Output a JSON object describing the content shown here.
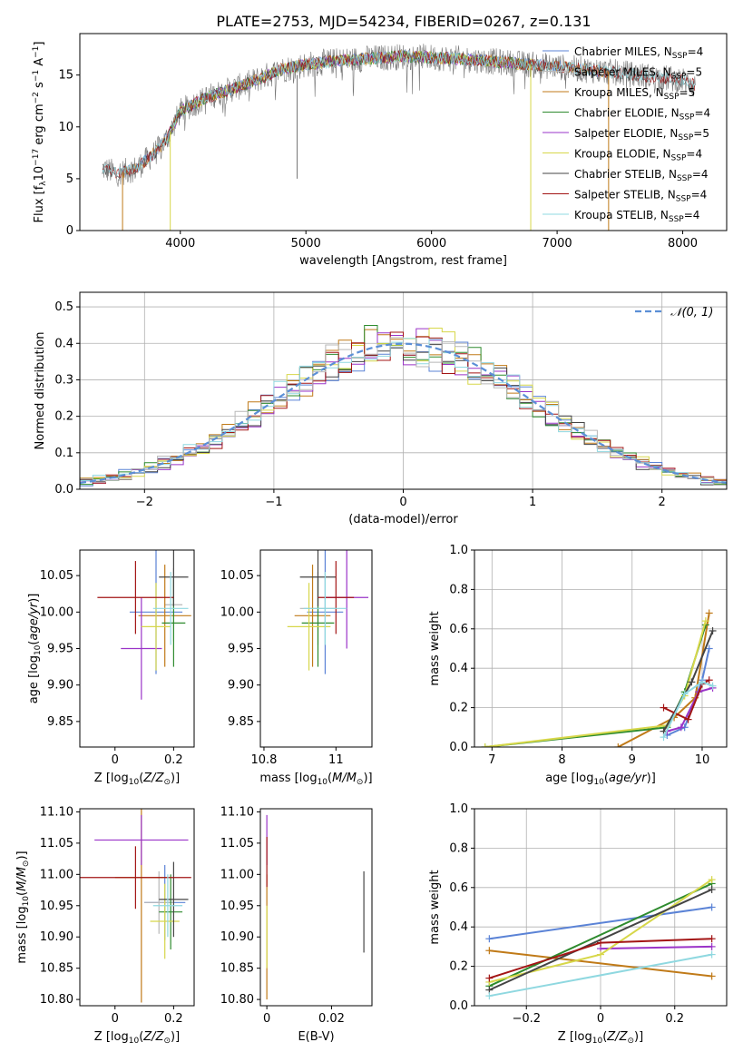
{
  "title": "PLATE=2753, MJD=54234, FIBERID=0267, z=0.131",
  "colors": {
    "chabrier_miles": "#5b83d6",
    "salpeter_miles": "#b8b8b8",
    "kroupa_miles": "#c07a18",
    "chabrier_elodie": "#2e8b2e",
    "salpeter_elodie": "#9a34c8",
    "kroupa_elodie": "#d7d74a",
    "chabrier_stelib": "#444444",
    "salpeter_stelib": "#a31515",
    "kroupa_stelib": "#8fd8e0",
    "normal_curve": "#5b8fd6"
  },
  "legend_models": [
    {
      "key": "chabrier_miles",
      "label": "Chabrier MILES, N",
      "n": "=4"
    },
    {
      "key": "salpeter_miles",
      "label": "Salpeter MILES, N",
      "n": "=5"
    },
    {
      "key": "kroupa_miles",
      "label": "Kroupa MILES, N",
      "n": "=5"
    },
    {
      "key": "chabrier_elodie",
      "label": "Chabrier ELODIE, N",
      "n": "=4"
    },
    {
      "key": "salpeter_elodie",
      "label": "Salpeter ELODIE, N",
      "n": "=5"
    },
    {
      "key": "kroupa_elodie",
      "label": "Kroupa ELODIE, N",
      "n": "=4"
    },
    {
      "key": "chabrier_stelib",
      "label": "Chabrier STELIB, N",
      "n": "=4"
    },
    {
      "key": "salpeter_stelib",
      "label": "Salpeter STELIB, N",
      "n": "=4"
    },
    {
      "key": "kroupa_stelib",
      "label": "Kroupa STELIB, N",
      "n": "=4"
    }
  ],
  "legend_sub": "SSP",
  "normal_label": "𝒩(0, 1)",
  "chart_data": [
    {
      "type": "line",
      "name": "spectrum",
      "xlabel": "wavelength [Angstrom, rest frame]",
      "ylabel": "Flux [f_λ 10^-17 erg cm^-2 s^-1 A^-1]",
      "xlim": [
        3200,
        8350
      ],
      "ylim": [
        0,
        19
      ],
      "xticks": [
        4000,
        5000,
        6000,
        7000,
        8000
      ],
      "yticks": [
        0,
        5,
        10,
        15
      ],
      "continuum": [
        [
          3380,
          6.0
        ],
        [
          3500,
          5.5
        ],
        [
          3650,
          6.0
        ],
        [
          3800,
          7.5
        ],
        [
          3900,
          9.0
        ],
        [
          4000,
          11.5
        ],
        [
          4200,
          12.8
        ],
        [
          4500,
          14.0
        ],
        [
          4800,
          15.5
        ],
        [
          5000,
          16.0
        ],
        [
          5200,
          16.3
        ],
        [
          5500,
          16.6
        ],
        [
          5800,
          16.8
        ],
        [
          6000,
          16.7
        ],
        [
          6300,
          16.5
        ],
        [
          6600,
          16.2
        ],
        [
          7000,
          15.8
        ],
        [
          7500,
          15.2
        ],
        [
          8000,
          14.5
        ],
        [
          8100,
          14.0
        ]
      ]
    },
    {
      "type": "line",
      "name": "residuals",
      "xlabel": "(data-model)/error",
      "ylabel": "Normed distribution",
      "xlim": [
        -2.5,
        2.5
      ],
      "ylim": [
        0,
        0.54
      ],
      "xticks": [
        -2,
        -1,
        0,
        1,
        2
      ],
      "yticks": [
        0.0,
        0.1,
        0.2,
        0.3,
        0.4,
        0.5
      ],
      "bin_width": 0.1,
      "grid": true,
      "legend": "top-right"
    },
    {
      "type": "scatter",
      "name": "age_vs_Z",
      "xlabel": "Z [log10(Z/Z⊙)]",
      "ylabel": "age  [log10(age/yr)]",
      "xlim": [
        -0.12,
        0.27
      ],
      "ylim": [
        9.815,
        10.085
      ],
      "xticks": [
        0.0,
        0.2
      ],
      "yticks": [
        9.85,
        9.9,
        9.95,
        10.0,
        10.05
      ],
      "points": [
        {
          "key": "chabrier_miles",
          "x": 0.14,
          "xerr": 0.09,
          "y": 10.0,
          "yerr": 0.085
        },
        {
          "key": "salpeter_miles",
          "x": 0.2,
          "xerr": 0.03,
          "y": 10.01,
          "yerr": 0.05
        },
        {
          "key": "kroupa_miles",
          "x": 0.17,
          "xerr": 0.09,
          "y": 9.995,
          "yerr": 0.07
        },
        {
          "key": "chabrier_elodie",
          "x": 0.2,
          "xerr": 0.04,
          "y": 9.985,
          "yerr": 0.06
        },
        {
          "key": "salpeter_elodie",
          "x": 0.09,
          "xerr": 0.07,
          "y": 9.95,
          "yerr": 0.07
        },
        {
          "key": "kroupa_elodie",
          "x": 0.14,
          "xerr": 0.05,
          "y": 9.98,
          "yerr": 0.06
        },
        {
          "key": "chabrier_stelib",
          "x": 0.2,
          "xerr": 0.05,
          "y": 10.048,
          "yerr": 0.04
        },
        {
          "key": "salpeter_stelib",
          "x": 0.07,
          "xerr": 0.13,
          "y": 10.02,
          "yerr": 0.05
        },
        {
          "key": "kroupa_stelib",
          "x": 0.19,
          "xerr": 0.06,
          "y": 10.005,
          "yerr": 0.05
        }
      ]
    },
    {
      "type": "scatter",
      "name": "age_vs_mass",
      "xlabel": "mass [log10(M/M⊙)]",
      "ylabel": "",
      "xlim": [
        10.79,
        11.1
      ],
      "ylim": [
        9.815,
        10.085
      ],
      "xticks": [
        10.8,
        11.0
      ],
      "yticks": [
        9.85,
        9.9,
        9.95,
        10.0,
        10.05
      ],
      "points": [
        {
          "key": "chabrier_miles",
          "x": 10.97,
          "xerr": 0.05,
          "y": 10.0,
          "yerr": 0.085
        },
        {
          "key": "salpeter_miles",
          "x": 10.95,
          "xerr": 0.05,
          "y": 10.005,
          "yerr": 0.05
        },
        {
          "key": "kroupa_miles",
          "x": 10.935,
          "xerr": 0.05,
          "y": 9.995,
          "yerr": 0.07
        },
        {
          "key": "chabrier_elodie",
          "x": 10.95,
          "xerr": 0.045,
          "y": 9.985,
          "yerr": 0.06
        },
        {
          "key": "salpeter_elodie",
          "x": 11.03,
          "xerr": 0.06,
          "y": 10.02,
          "yerr": 0.07
        },
        {
          "key": "kroupa_elodie",
          "x": 10.925,
          "xerr": 0.06,
          "y": 9.98,
          "yerr": 0.06
        },
        {
          "key": "chabrier_stelib",
          "x": 10.95,
          "xerr": 0.05,
          "y": 10.048,
          "yerr": 0.04
        },
        {
          "key": "salpeter_stelib",
          "x": 11.0,
          "xerr": 0.05,
          "y": 10.02,
          "yerr": 0.05
        },
        {
          "key": "kroupa_stelib",
          "x": 10.97,
          "xerr": 0.06,
          "y": 10.005,
          "yerr": 0.05
        }
      ]
    },
    {
      "type": "line",
      "name": "mass_weight_vs_age",
      "xlabel": "age  [log10(age/yr)]",
      "ylabel": "mass weight",
      "xlim": [
        6.75,
        10.35
      ],
      "ylim": [
        0,
        1
      ],
      "xticks": [
        7,
        8,
        9,
        10
      ],
      "yticks": [
        0.0,
        0.2,
        0.4,
        0.6,
        0.8,
        1.0
      ],
      "grid": true,
      "series": [
        {
          "key": "chabrier_miles",
          "x": [
            9.5,
            9.75,
            10.0,
            10.1
          ],
          "y": [
            0.06,
            0.1,
            0.34,
            0.5
          ]
        },
        {
          "key": "kroupa_miles",
          "x": [
            8.8,
            9.6,
            9.9,
            10.1
          ],
          "y": [
            0.0,
            0.15,
            0.25,
            0.68
          ]
        },
        {
          "key": "chabrier_elodie",
          "x": [
            6.9,
            9.5,
            9.75,
            10.05
          ],
          "y": [
            0.0,
            0.1,
            0.28,
            0.62
          ]
        },
        {
          "key": "salpeter_elodie",
          "x": [
            9.5,
            9.7,
            9.95,
            10.15
          ],
          "y": [
            0.08,
            0.1,
            0.28,
            0.3
          ]
        },
        {
          "key": "kroupa_elodie",
          "x": [
            6.9,
            9.5,
            9.75,
            10.05
          ],
          "y": [
            0.0,
            0.11,
            0.26,
            0.64
          ]
        },
        {
          "key": "chabrier_stelib",
          "x": [
            9.45,
            9.85,
            10.15
          ],
          "y": [
            0.08,
            0.33,
            0.59
          ]
        },
        {
          "key": "salpeter_stelib",
          "x": [
            9.45,
            9.8,
            10.0,
            10.1
          ],
          "y": [
            0.2,
            0.14,
            0.32,
            0.34
          ]
        },
        {
          "key": "kroupa_stelib",
          "x": [
            9.45,
            9.75,
            10.0,
            10.15
          ],
          "y": [
            0.05,
            0.27,
            0.33,
            0.31
          ]
        }
      ]
    },
    {
      "type": "scatter",
      "name": "mass_vs_Z",
      "xlabel": "Z [log10(Z/Z⊙)]",
      "ylabel": "mass [log10(M/M⊙)]",
      "xlim": [
        -0.12,
        0.27
      ],
      "ylim": [
        10.79,
        11.105
      ],
      "xticks": [
        0.0,
        0.2
      ],
      "yticks": [
        10.8,
        10.85,
        10.9,
        10.95,
        11.0,
        11.05,
        11.1
      ],
      "points": [
        {
          "key": "chabrier_miles",
          "x": 0.17,
          "xerr": 0.07,
          "y": 10.955,
          "yerr": 0.06
        },
        {
          "key": "salpeter_miles",
          "x": 0.15,
          "xerr": 0.05,
          "y": 10.955,
          "yerr": 0.05
        },
        {
          "key": "kroupa_miles",
          "x": 0.09,
          "xerr": 0.09,
          "y": 10.995,
          "yerr": 0.2
        },
        {
          "key": "chabrier_elodie",
          "x": 0.19,
          "xerr": 0.04,
          "y": 10.94,
          "yerr": 0.06
        },
        {
          "key": "salpeter_elodie",
          "x": 0.09,
          "xerr": 0.16,
          "y": 11.055,
          "yerr": 0.04
        },
        {
          "key": "kroupa_elodie",
          "x": 0.17,
          "xerr": 0.05,
          "y": 10.925,
          "yerr": 0.06
        },
        {
          "key": "chabrier_stelib",
          "x": 0.2,
          "xerr": 0.05,
          "y": 10.96,
          "yerr": 0.06
        },
        {
          "key": "salpeter_stelib",
          "x": 0.07,
          "xerr": 0.19,
          "y": 10.995,
          "yerr": 0.05
        },
        {
          "key": "kroupa_stelib",
          "x": 0.18,
          "xerr": 0.05,
          "y": 10.95,
          "yerr": 0.05
        }
      ]
    },
    {
      "type": "scatter",
      "name": "mass_vs_EBV",
      "xlabel": "E(B-V)",
      "ylabel": "",
      "xlim": [
        -0.002,
        0.0325
      ],
      "ylim": [
        10.79,
        11.105
      ],
      "xticks": [
        0.0,
        0.02
      ],
      "yticks": [
        10.8,
        10.85,
        10.9,
        10.95,
        11.0,
        11.05,
        11.1
      ],
      "points": [
        {
          "key": "kroupa_miles",
          "x": 0.0,
          "y": 10.9,
          "yerr": 0.1
        },
        {
          "key": "salpeter_elodie",
          "x": 0.0,
          "y": 11.055,
          "yerr": 0.04
        },
        {
          "key": "kroupa_elodie",
          "x": 0.0,
          "y": 10.9,
          "yerr": 0.05
        },
        {
          "key": "salpeter_stelib",
          "x": 0.0,
          "y": 11.02,
          "yerr": 0.04
        },
        {
          "key": "chabrier_stelib",
          "x": 0.03,
          "y": 10.94,
          "yerr": 0.065
        }
      ]
    },
    {
      "type": "line",
      "name": "mass_weight_vs_Z",
      "xlabel": "Z [log10(Z/Z⊙)]",
      "ylabel": "mass weight",
      "xlim": [
        -0.34,
        0.34
      ],
      "ylim": [
        0,
        1
      ],
      "xticks": [
        -0.2,
        0.0,
        0.2
      ],
      "yticks": [
        0.0,
        0.2,
        0.4,
        0.6,
        0.8,
        1.0
      ],
      "grid": true,
      "series": [
        {
          "key": "chabrier_miles",
          "x": [
            -0.3,
            0.3
          ],
          "y": [
            0.34,
            0.5
          ]
        },
        {
          "key": "kroupa_miles",
          "x": [
            -0.3,
            0.3
          ],
          "y": [
            0.28,
            0.15
          ]
        },
        {
          "key": "chabrier_elodie",
          "x": [
            -0.3,
            0.3
          ],
          "y": [
            0.1,
            0.62
          ]
        },
        {
          "key": "salpeter_elodie",
          "x": [
            0.0,
            0.3
          ],
          "y": [
            0.29,
            0.3
          ]
        },
        {
          "key": "kroupa_elodie",
          "x": [
            -0.3,
            0.0,
            0.3
          ],
          "y": [
            0.12,
            0.26,
            0.64
          ]
        },
        {
          "key": "chabrier_stelib",
          "x": [
            -0.3,
            0.3
          ],
          "y": [
            0.08,
            0.59
          ]
        },
        {
          "key": "salpeter_stelib",
          "x": [
            -0.3,
            0.0,
            0.3
          ],
          "y": [
            0.14,
            0.32,
            0.34
          ]
        },
        {
          "key": "kroupa_stelib",
          "x": [
            -0.3,
            0.3
          ],
          "y": [
            0.05,
            0.26
          ]
        }
      ]
    }
  ]
}
